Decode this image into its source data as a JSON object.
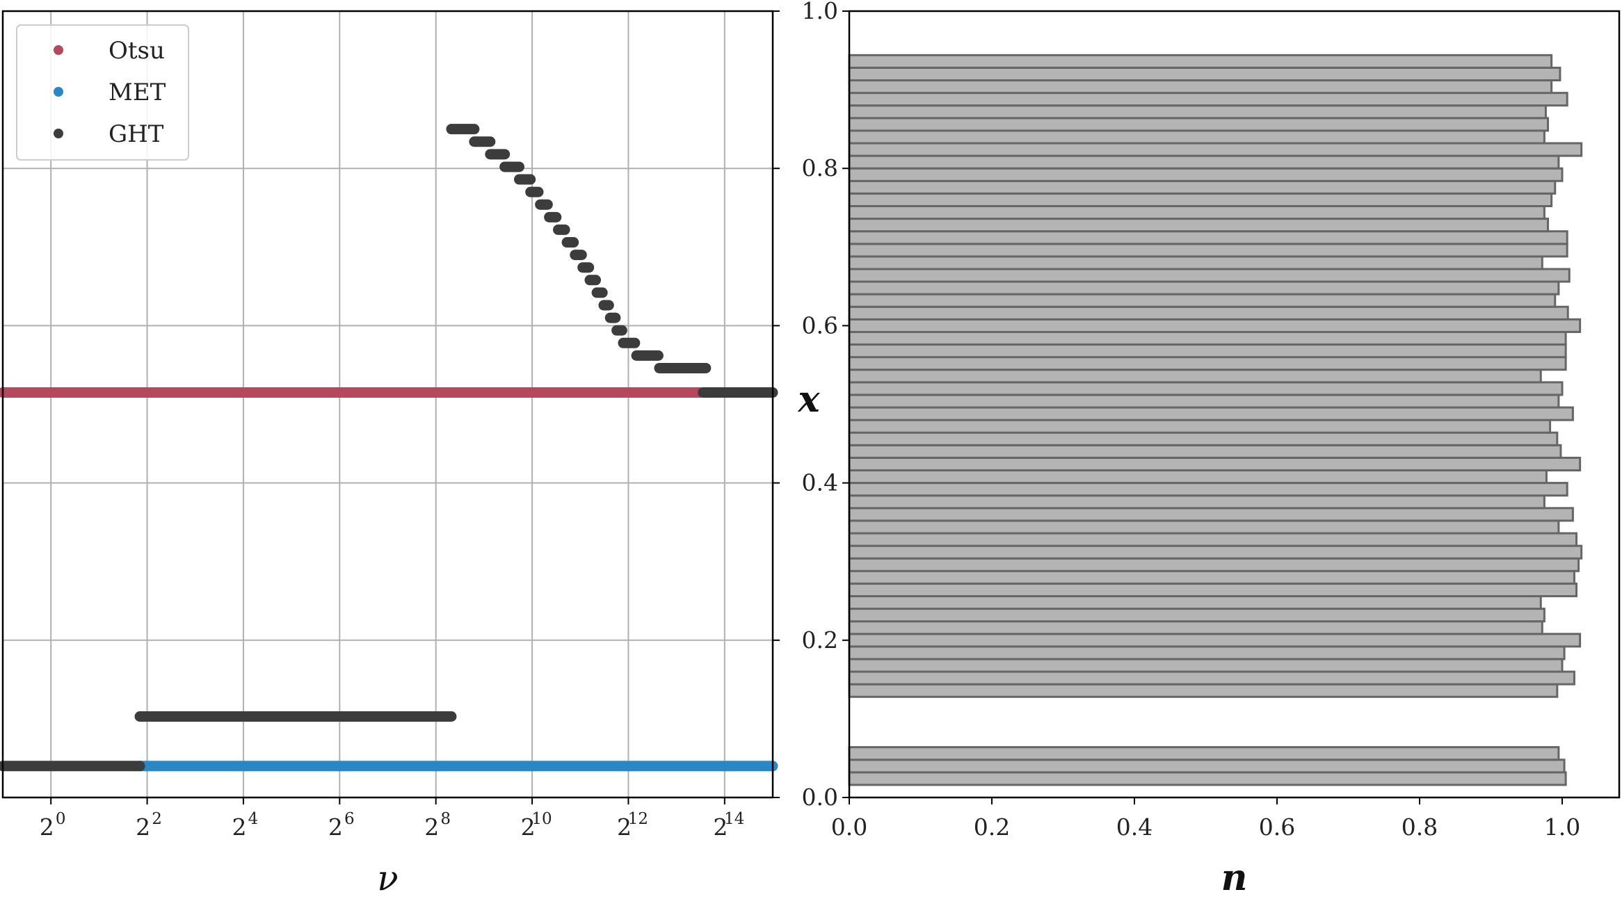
{
  "colors": {
    "otsu": "#b5485d",
    "met": "#2b86c5",
    "ght": "#3c3c3c",
    "bar_fill": "#b4b4b4",
    "bar_edge": "#666666",
    "grid": "#b0b0b0"
  },
  "chart_data": [
    {
      "type": "line",
      "xlabel": "ν",
      "ylabel": "x",
      "x_scale": "log2",
      "xlim": [
        0.5,
        32768
      ],
      "ylim": [
        0,
        1
      ],
      "grid": true,
      "legend_position": "top-left",
      "x_ticks": [
        {
          "base": "2",
          "exp": "0",
          "value": 1
        },
        {
          "base": "2",
          "exp": "2",
          "value": 4
        },
        {
          "base": "2",
          "exp": "4",
          "value": 16
        },
        {
          "base": "2",
          "exp": "6",
          "value": 64
        },
        {
          "base": "2",
          "exp": "8",
          "value": 256
        },
        {
          "base": "2",
          "exp": "10",
          "value": 1024
        },
        {
          "base": "2",
          "exp": "12",
          "value": 4096
        },
        {
          "base": "2",
          "exp": "14",
          "value": 16384
        }
      ],
      "series": [
        {
          "name": "Otsu",
          "color": "#b5485d",
          "segments": [
            {
              "x": [
                0.5,
                11500
              ],
              "y": 0.515
            }
          ]
        },
        {
          "name": "MET",
          "color": "#2b86c5",
          "segments": [
            {
              "x": [
                3.6,
                32768
              ],
              "y": 0.04
            }
          ]
        },
        {
          "name": "GHT",
          "color": "#3c3c3c",
          "segments": [
            {
              "x": [
                0.5,
                3.6
              ],
              "y": 0.04
            },
            {
              "x": [
                3.6,
                320
              ],
              "y": 0.103
            },
            {
              "x": [
                320,
                445
              ],
              "y": 0.85
            },
            {
              "x": [
                445,
                560
              ],
              "y": 0.834
            },
            {
              "x": [
                560,
                690
              ],
              "y": 0.818
            },
            {
              "x": [
                690,
                850
              ],
              "y": 0.802
            },
            {
              "x": [
                850,
                1000
              ],
              "y": 0.786
            },
            {
              "x": [
                1000,
                1120
              ],
              "y": 0.77
            },
            {
              "x": [
                1150,
                1280
              ],
              "y": 0.754
            },
            {
              "x": [
                1310,
                1450
              ],
              "y": 0.738
            },
            {
              "x": [
                1490,
                1640
              ],
              "y": 0.722
            },
            {
              "x": [
                1690,
                1860
              ],
              "y": 0.706
            },
            {
              "x": [
                1900,
                2090
              ],
              "y": 0.69
            },
            {
              "x": [
                2120,
                2320
              ],
              "y": 0.674
            },
            {
              "x": [
                2350,
                2560
              ],
              "y": 0.658
            },
            {
              "x": [
                2600,
                2820
              ],
              "y": 0.642
            },
            {
              "x": [
                2870,
                3090
              ],
              "y": 0.626
            },
            {
              "x": [
                3150,
                3400
              ],
              "y": 0.61
            },
            {
              "x": [
                3460,
                3740
              ],
              "y": 0.594
            },
            {
              "x": [
                3800,
                4500
              ],
              "y": 0.578
            },
            {
              "x": [
                4600,
                6300
              ],
              "y": 0.562
            },
            {
              "x": [
                6400,
                12500
              ],
              "y": 0.546
            },
            {
              "x": [
                12000,
                32768
              ],
              "y": 0.515
            }
          ]
        }
      ]
    },
    {
      "type": "bar",
      "orientation": "horizontal",
      "xlabel": "n",
      "ylabel": "",
      "xlim": [
        0,
        1.08
      ],
      "ylim": [
        0,
        1
      ],
      "x_ticks": [
        "0.0",
        "0.2",
        "0.4",
        "0.6",
        "0.8",
        "1.0"
      ],
      "y_ticks": [
        "0.0",
        "0.2",
        "0.4",
        "0.6",
        "0.8",
        "1.0"
      ],
      "bin_width": 0.016,
      "bins": [
        {
          "y": 0.024,
          "n": 1.005
        },
        {
          "y": 0.04,
          "n": 1.003
        },
        {
          "y": 0.056,
          "n": 0.995
        },
        {
          "y": 0.136,
          "n": 0.993
        },
        {
          "y": 0.152,
          "n": 1.017
        },
        {
          "y": 0.168,
          "n": 1.0
        },
        {
          "y": 0.184,
          "n": 1.003
        },
        {
          "y": 0.2,
          "n": 1.025
        },
        {
          "y": 0.216,
          "n": 0.972
        },
        {
          "y": 0.232,
          "n": 0.975
        },
        {
          "y": 0.248,
          "n": 0.97
        },
        {
          "y": 0.264,
          "n": 1.02
        },
        {
          "y": 0.28,
          "n": 1.017
        },
        {
          "y": 0.296,
          "n": 1.023
        },
        {
          "y": 0.312,
          "n": 1.027
        },
        {
          "y": 0.328,
          "n": 1.02
        },
        {
          "y": 0.344,
          "n": 0.995
        },
        {
          "y": 0.36,
          "n": 1.015
        },
        {
          "y": 0.376,
          "n": 0.975
        },
        {
          "y": 0.392,
          "n": 1.007
        },
        {
          "y": 0.408,
          "n": 0.978
        },
        {
          "y": 0.424,
          "n": 1.025
        },
        {
          "y": 0.44,
          "n": 0.998
        },
        {
          "y": 0.456,
          "n": 0.993
        },
        {
          "y": 0.472,
          "n": 0.983
        },
        {
          "y": 0.488,
          "n": 1.015
        },
        {
          "y": 0.504,
          "n": 0.995
        },
        {
          "y": 0.52,
          "n": 1.0
        },
        {
          "y": 0.536,
          "n": 0.97
        },
        {
          "y": 0.552,
          "n": 1.005
        },
        {
          "y": 0.568,
          "n": 1.005
        },
        {
          "y": 0.584,
          "n": 1.005
        },
        {
          "y": 0.6,
          "n": 1.025
        },
        {
          "y": 0.616,
          "n": 1.008
        },
        {
          "y": 0.632,
          "n": 0.99
        },
        {
          "y": 0.648,
          "n": 0.995
        },
        {
          "y": 0.664,
          "n": 1.01
        },
        {
          "y": 0.68,
          "n": 0.972
        },
        {
          "y": 0.696,
          "n": 1.007
        },
        {
          "y": 0.712,
          "n": 1.007
        },
        {
          "y": 0.728,
          "n": 0.98
        },
        {
          "y": 0.744,
          "n": 0.975
        },
        {
          "y": 0.76,
          "n": 0.985
        },
        {
          "y": 0.776,
          "n": 0.99
        },
        {
          "y": 0.792,
          "n": 1.0
        },
        {
          "y": 0.808,
          "n": 0.995
        },
        {
          "y": 0.824,
          "n": 1.027
        },
        {
          "y": 0.84,
          "n": 0.975
        },
        {
          "y": 0.856,
          "n": 0.98
        },
        {
          "y": 0.872,
          "n": 0.977
        },
        {
          "y": 0.888,
          "n": 1.007
        },
        {
          "y": 0.904,
          "n": 0.985
        },
        {
          "y": 0.92,
          "n": 0.997
        },
        {
          "y": 0.936,
          "n": 0.985
        }
      ]
    }
  ],
  "legend": [
    {
      "label": "Otsu",
      "color": "#b5485d"
    },
    {
      "label": "MET",
      "color": "#2b86c5"
    },
    {
      "label": "GHT",
      "color": "#3c3c3c"
    }
  ]
}
